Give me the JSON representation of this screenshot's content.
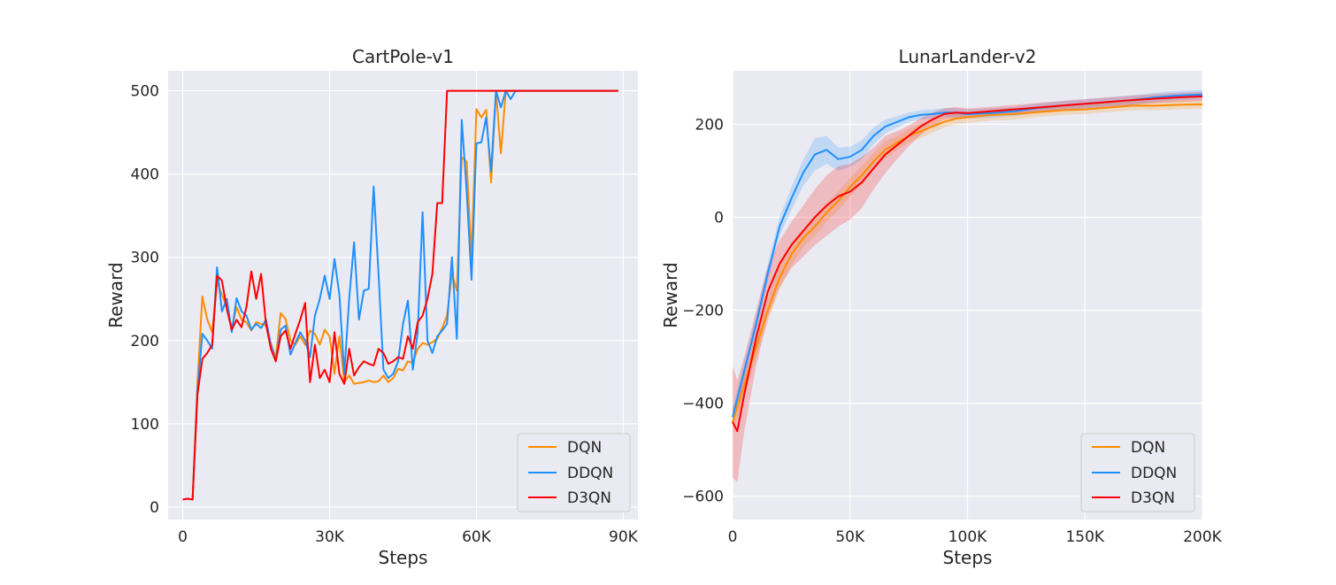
{
  "chart_data": [
    {
      "type": "line",
      "title": "CartPole-v1",
      "xlabel": "Steps",
      "ylabel": "Reward",
      "xlim": [
        -3000,
        93000
      ],
      "ylim": [
        -15,
        524
      ],
      "xticks": [
        0,
        30000,
        60000,
        90000
      ],
      "xtick_labels": [
        "0",
        "30K",
        "60K",
        "90K"
      ],
      "yticks": [
        0,
        100,
        200,
        300,
        400,
        500
      ],
      "ytick_labels": [
        "0",
        "100",
        "200",
        "300",
        "400",
        "500"
      ],
      "grid": true,
      "legend_position": "lower-right",
      "series": [
        {
          "name": "DQN",
          "color": "#ff8c00",
          "x": [
            0,
            1000,
            2000,
            3000,
            4000,
            5000,
            6000,
            7000,
            8000,
            9000,
            10000,
            11000,
            12000,
            13000,
            14000,
            15000,
            16000,
            17000,
            18000,
            19000,
            20000,
            21000,
            22000,
            23000,
            24000,
            25000,
            26000,
            27000,
            28000,
            29000,
            30000,
            31000,
            32000,
            33000,
            34000,
            35000,
            36000,
            37000,
            38000,
            39000,
            40000,
            41000,
            42000,
            43000,
            44000,
            45000,
            46000,
            47000,
            48000,
            49000,
            50000,
            51000,
            52000,
            53000,
            54000,
            55000,
            56000,
            57000,
            58000,
            59000,
            60000,
            61000,
            62000,
            63000,
            64000,
            65000,
            66000,
            67000,
            68000,
            69000,
            89000
          ],
          "y": [
            9,
            10,
            9,
            150,
            253,
            225,
            210,
            270,
            255,
            240,
            215,
            240,
            225,
            222,
            212,
            222,
            220,
            218,
            196,
            180,
            233,
            226,
            200,
            195,
            205,
            195,
            212,
            208,
            195,
            213,
            205,
            160,
            205,
            150,
            158,
            148,
            149,
            150,
            152,
            150,
            151,
            158,
            150,
            155,
            166,
            164,
            175,
            173,
            190,
            197,
            195,
            198,
            202,
            215,
            230,
            280,
            260,
            420,
            415,
            300,
            478,
            468,
            477,
            390,
            500,
            425,
            500,
            500,
            500,
            500,
            500
          ]
        },
        {
          "name": "DDQN",
          "color": "#1e90ff",
          "x": [
            0,
            1000,
            2000,
            3000,
            4000,
            5000,
            6000,
            7000,
            8000,
            9000,
            10000,
            11000,
            12000,
            13000,
            14000,
            15000,
            16000,
            17000,
            18000,
            19000,
            20000,
            21000,
            22000,
            23000,
            24000,
            25000,
            26000,
            27000,
            28000,
            29000,
            30000,
            31000,
            32000,
            33000,
            34000,
            35000,
            36000,
            37000,
            38000,
            39000,
            40000,
            41000,
            42000,
            43000,
            44000,
            45000,
            46000,
            47000,
            48000,
            49000,
            50000,
            51000,
            52000,
            53000,
            54000,
            55000,
            56000,
            57000,
            58000,
            59000,
            60000,
            61000,
            62000,
            63000,
            64000,
            65000,
            66000,
            67000,
            68000,
            69000,
            89000
          ],
          "y": [
            9,
            10,
            9,
            140,
            208,
            200,
            190,
            288,
            235,
            250,
            210,
            251,
            235,
            230,
            213,
            220,
            215,
            225,
            195,
            175,
            213,
            218,
            183,
            197,
            210,
            200,
            180,
            230,
            250,
            278,
            250,
            298,
            255,
            160,
            250,
            318,
            225,
            260,
            262,
            385,
            280,
            165,
            155,
            160,
            175,
            220,
            248,
            165,
            210,
            354,
            200,
            185,
            205,
            212,
            220,
            300,
            202,
            465,
            380,
            273,
            437,
            438,
            468,
            403,
            500,
            480,
            500,
            490,
            500,
            500,
            500
          ]
        },
        {
          "name": "D3QN",
          "color": "#ff0000",
          "x": [
            0,
            1000,
            2000,
            3000,
            4000,
            5000,
            6000,
            7000,
            8000,
            9000,
            10000,
            11000,
            12000,
            13000,
            14000,
            15000,
            16000,
            17000,
            18000,
            19000,
            20000,
            21000,
            22000,
            23000,
            24000,
            25000,
            26000,
            27000,
            28000,
            29000,
            30000,
            31000,
            32000,
            33000,
            34000,
            35000,
            36000,
            37000,
            38000,
            39000,
            40000,
            41000,
            42000,
            43000,
            44000,
            45000,
            46000,
            47000,
            48000,
            49000,
            50000,
            51000,
            52000,
            53000,
            54000,
            55000,
            89000
          ],
          "y": [
            9,
            10,
            9,
            135,
            178,
            185,
            195,
            278,
            272,
            238,
            213,
            225,
            216,
            240,
            283,
            250,
            280,
            220,
            190,
            175,
            205,
            212,
            190,
            208,
            225,
            245,
            150,
            195,
            155,
            165,
            150,
            210,
            160,
            148,
            190,
            158,
            168,
            175,
            172,
            170,
            190,
            185,
            172,
            175,
            180,
            178,
            205,
            190,
            222,
            230,
            250,
            280,
            365,
            365,
            500,
            500,
            500
          ]
        }
      ]
    },
    {
      "type": "line",
      "title": "LunarLander-v2",
      "xlabel": "Steps",
      "ylabel": "Reward",
      "xlim": [
        0,
        200000
      ],
      "ylim": [
        -650,
        315
      ],
      "xticks": [
        0,
        50000,
        100000,
        150000,
        200000
      ],
      "xtick_labels": [
        "0",
        "50K",
        "100K",
        "150K",
        "200K"
      ],
      "yticks": [
        -600,
        -400,
        -200,
        0,
        200
      ],
      "ytick_labels": [
        "−600",
        "−400",
        "−200",
        "0",
        "200"
      ],
      "grid": true,
      "legend_position": "lower-right",
      "series": [
        {
          "name": "DQN",
          "color": "#ff8c00",
          "x": [
            0,
            5000,
            10000,
            15000,
            20000,
            25000,
            30000,
            35000,
            40000,
            45000,
            50000,
            55000,
            60000,
            65000,
            70000,
            75000,
            80000,
            85000,
            90000,
            95000,
            100000,
            110000,
            120000,
            130000,
            140000,
            150000,
            160000,
            170000,
            180000,
            190000,
            200000
          ],
          "y": [
            -440,
            -360,
            -280,
            -200,
            -130,
            -80,
            -45,
            -20,
            10,
            35,
            65,
            90,
            120,
            145,
            160,
            175,
            185,
            195,
            205,
            212,
            215,
            220,
            222,
            226,
            230,
            232,
            236,
            240,
            240,
            242,
            243
          ],
          "band": [
            25,
            25,
            25,
            25,
            25,
            25,
            20,
            20,
            20,
            20,
            20,
            20,
            18,
            18,
            15,
            15,
            15,
            14,
            12,
            12,
            12,
            12,
            12,
            10,
            10,
            10,
            10,
            10,
            10,
            10,
            10
          ]
        },
        {
          "name": "DDQN",
          "color": "#1e90ff",
          "x": [
            0,
            5000,
            10000,
            15000,
            20000,
            25000,
            30000,
            35000,
            40000,
            45000,
            50000,
            55000,
            60000,
            65000,
            70000,
            75000,
            80000,
            85000,
            90000,
            95000,
            100000,
            110000,
            120000,
            130000,
            140000,
            150000,
            160000,
            170000,
            180000,
            190000,
            200000
          ],
          "y": [
            -430,
            -330,
            -230,
            -120,
            -20,
            40,
            95,
            135,
            145,
            125,
            130,
            145,
            175,
            195,
            205,
            215,
            220,
            222,
            225,
            225,
            222,
            224,
            228,
            235,
            240,
            244,
            248,
            252,
            258,
            262,
            264
          ],
          "band": [
            20,
            20,
            20,
            20,
            20,
            25,
            28,
            35,
            30,
            25,
            22,
            20,
            18,
            15,
            12,
            10,
            10,
            10,
            10,
            10,
            10,
            10,
            10,
            10,
            10,
            10,
            10,
            10,
            10,
            10,
            10
          ]
        },
        {
          "name": "D3QN",
          "color": "#ff0000",
          "x": [
            0,
            2000,
            5000,
            10000,
            15000,
            20000,
            25000,
            30000,
            35000,
            40000,
            45000,
            50000,
            55000,
            60000,
            65000,
            70000,
            75000,
            80000,
            85000,
            90000,
            95000,
            100000,
            110000,
            120000,
            130000,
            140000,
            150000,
            160000,
            170000,
            180000,
            190000,
            200000
          ],
          "y": [
            -440,
            -460,
            -380,
            -260,
            -160,
            -100,
            -60,
            -30,
            0,
            25,
            45,
            55,
            75,
            105,
            135,
            155,
            175,
            195,
            210,
            222,
            225,
            224,
            228,
            232,
            236,
            240,
            244,
            248,
            252,
            255,
            258,
            260
          ],
          "band": [
            120,
            110,
            80,
            60,
            55,
            50,
            50,
            55,
            60,
            65,
            65,
            60,
            55,
            45,
            40,
            30,
            22,
            18,
            15,
            12,
            12,
            10,
            10,
            10,
            10,
            10,
            10,
            10,
            10,
            10,
            10,
            10
          ]
        }
      ]
    }
  ]
}
